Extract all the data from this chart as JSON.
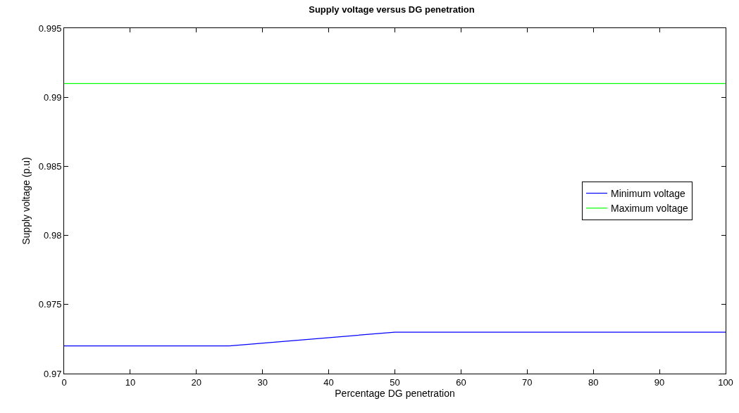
{
  "chart_data": {
    "type": "line",
    "title": "Supply voltage versus DG penetration",
    "xlabel": "Percentage DG penetration",
    "ylabel": "Supply voltage (p.u)",
    "series": [
      {
        "name": "Minimum voltage",
        "color": "#0000ff",
        "x": [
          0,
          25,
          50,
          100
        ],
        "values": [
          0.972,
          0.972,
          0.973,
          0.973
        ]
      },
      {
        "name": "Maximum voltage",
        "color": "#00ff00",
        "x": [
          0,
          100
        ],
        "values": [
          0.991,
          0.991
        ]
      }
    ],
    "xlim": [
      0,
      100
    ],
    "xticks": [
      0,
      10,
      20,
      30,
      40,
      50,
      60,
      70,
      80,
      90,
      100
    ],
    "ylim": [
      0.97,
      0.995
    ],
    "yticks": [
      0.97,
      0.975,
      0.98,
      0.985,
      0.99,
      0.995
    ],
    "grid": false,
    "legend": "right",
    "marker": "none",
    "line_style": "solid"
  }
}
